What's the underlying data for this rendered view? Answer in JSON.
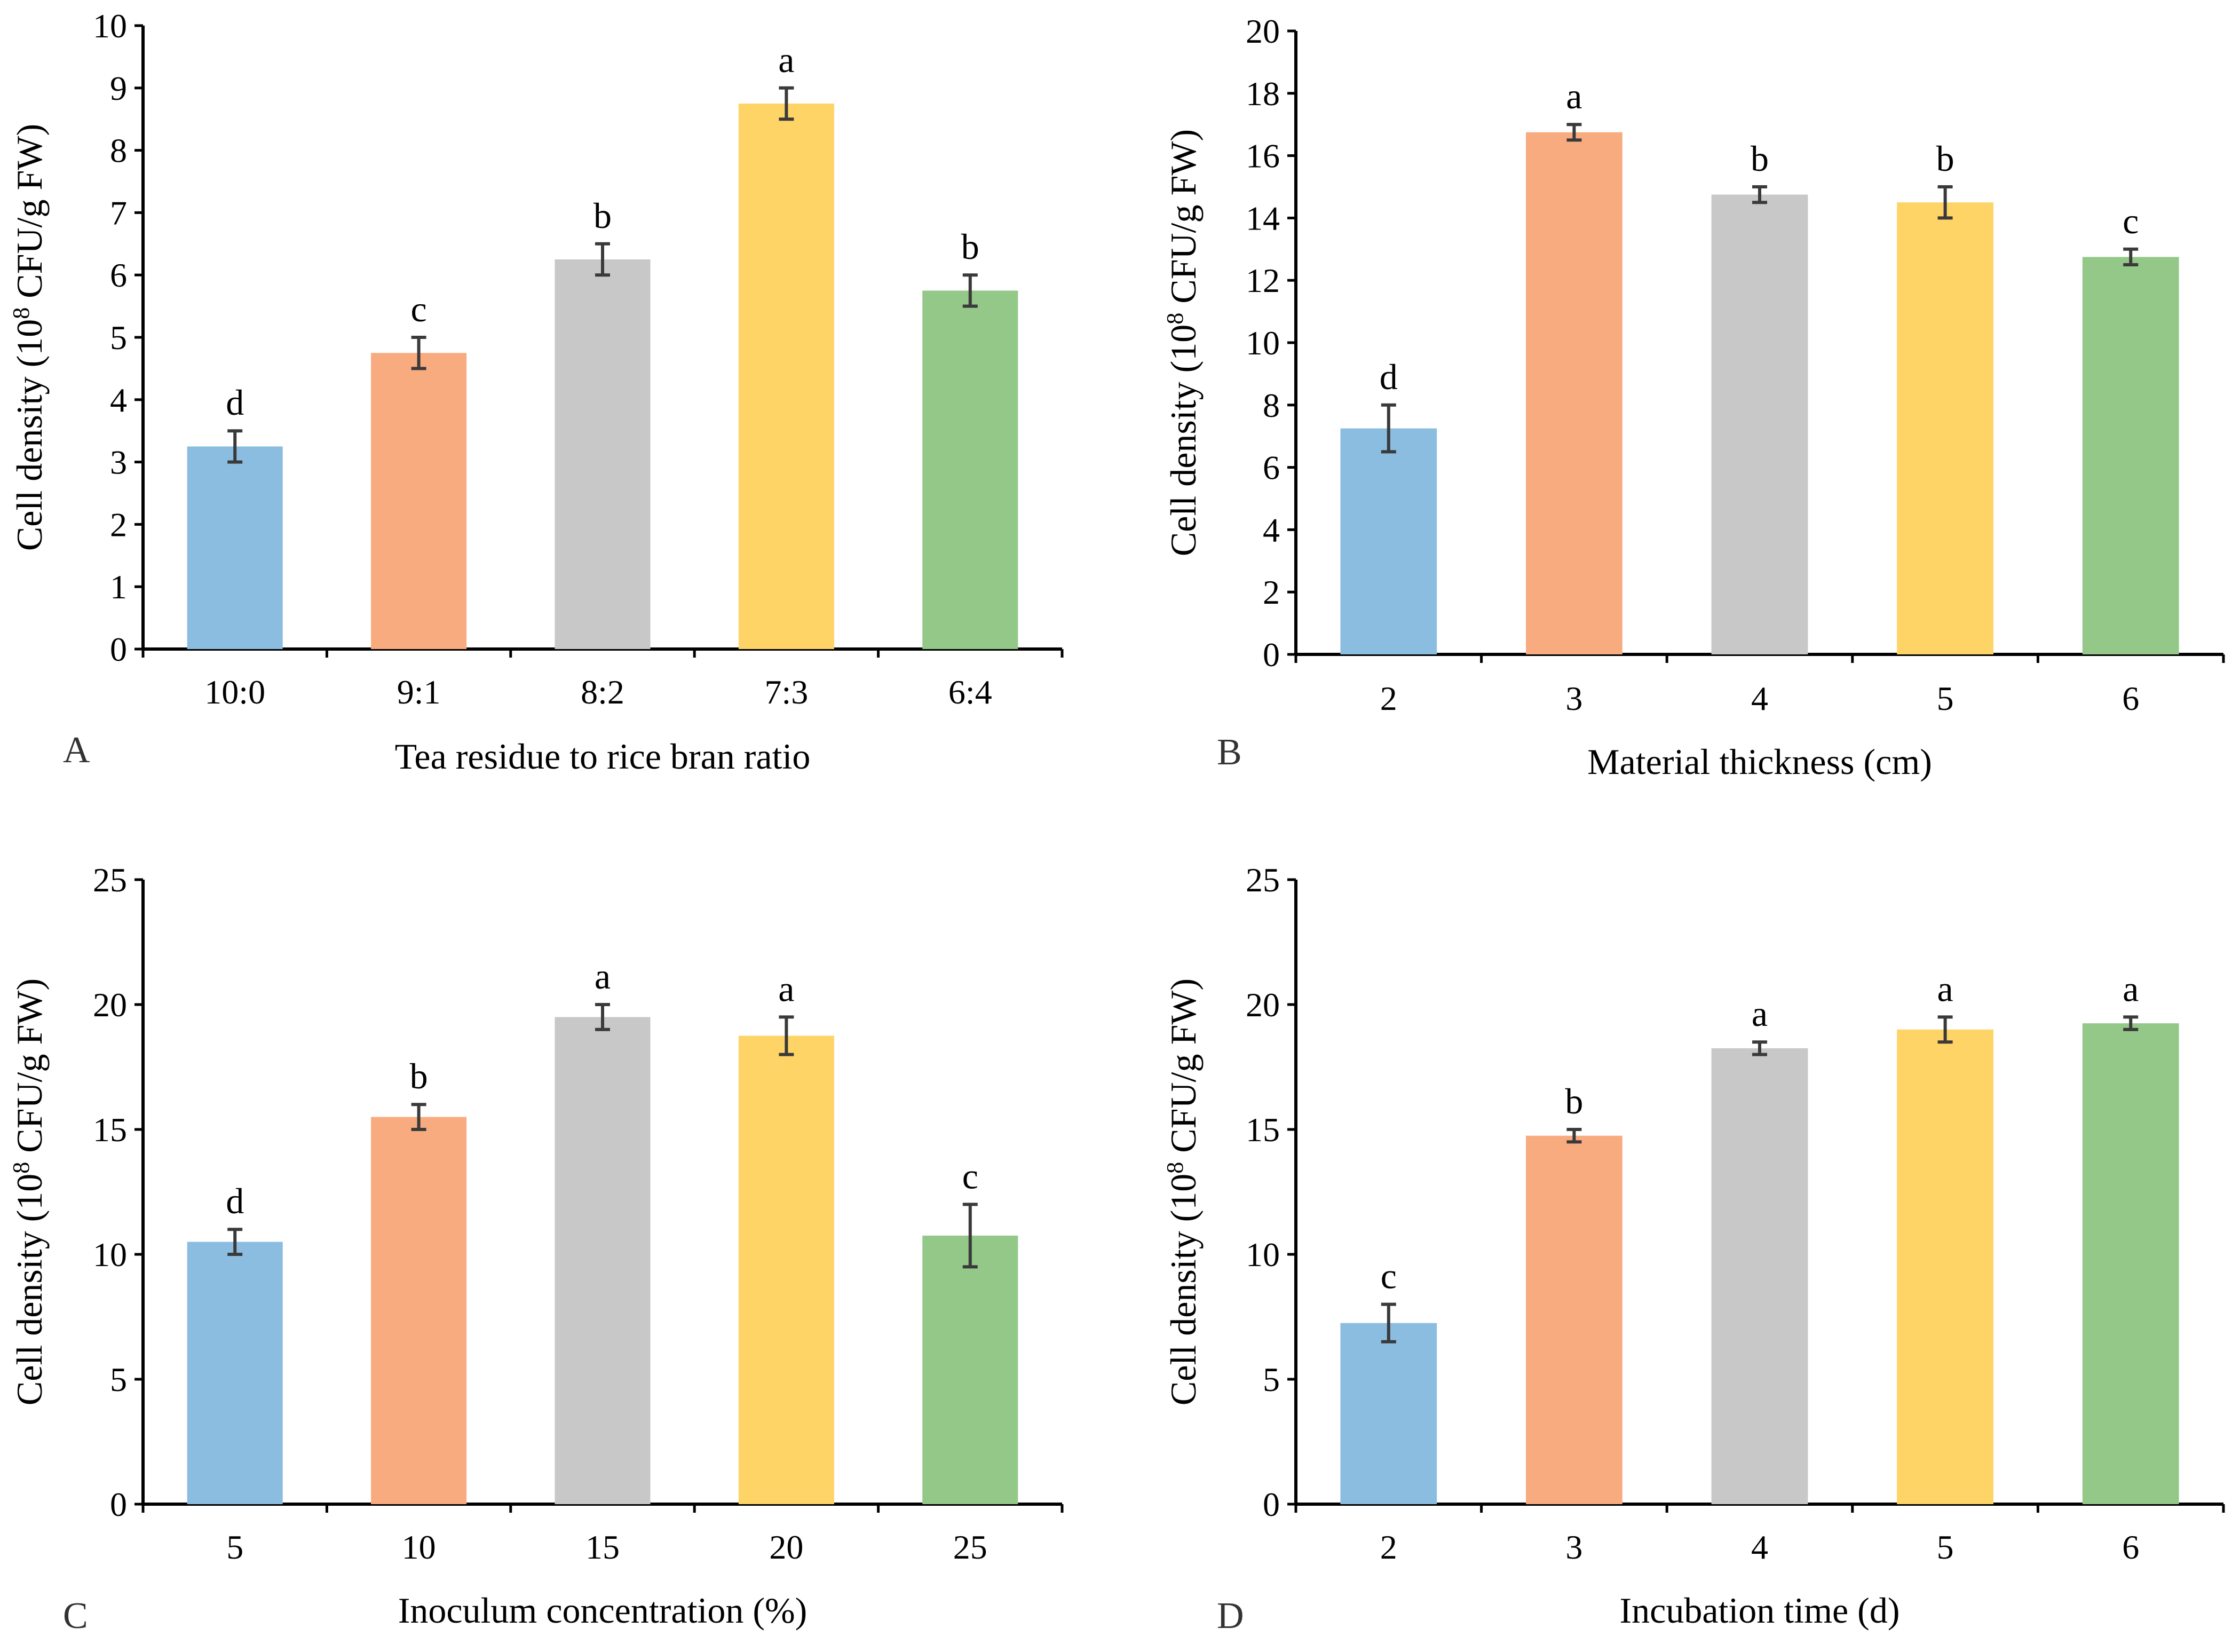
{
  "colors": {
    "bars": [
      "#8bbde0",
      "#f9ab80",
      "#c8c8c8",
      "#ffd466",
      "#94c888"
    ],
    "axis": "#000000",
    "error_bar": "#3a3a3a"
  },
  "ylabel_parts": {
    "pre": "Cell density (10",
    "sup": "8",
    "post": " CFU/g FW)"
  },
  "chart_data": [
    {
      "panel": "A",
      "type": "bar",
      "title": "",
      "xlabel": "Tea residue to rice bran ratio",
      "ylabel": "Cell density (10^8 CFU/g FW)",
      "ylim": [
        0,
        10
      ],
      "ytick_step": 1,
      "grid": false,
      "categories": [
        "10:0",
        "9:1",
        "8:2",
        "7:3",
        "6:4"
      ],
      "values": [
        3.25,
        4.75,
        6.25,
        8.75,
        5.75
      ],
      "errors": [
        0.25,
        0.25,
        0.25,
        0.25,
        0.25
      ],
      "significance": [
        "d",
        "c",
        "b",
        "a",
        "b"
      ]
    },
    {
      "panel": "B",
      "type": "bar",
      "title": "",
      "xlabel": "Material thickness (cm)",
      "ylabel": "Cell density (10^8 CFU/g FW)",
      "ylim": [
        0,
        20
      ],
      "ytick_step": 2,
      "grid": false,
      "categories": [
        "2",
        "3",
        "4",
        "5",
        "6"
      ],
      "values": [
        7.25,
        16.75,
        14.75,
        14.5,
        12.75
      ],
      "errors": [
        0.75,
        0.25,
        0.25,
        0.5,
        0.25
      ],
      "significance": [
        "d",
        "a",
        "b",
        "b",
        "c"
      ]
    },
    {
      "panel": "C",
      "type": "bar",
      "title": "",
      "xlabel": "Inoculum concentration (%)",
      "ylabel": "Cell density (10^8 CFU/g FW)",
      "ylim": [
        0,
        25
      ],
      "ytick_step": 5,
      "grid": false,
      "categories": [
        "5",
        "10",
        "15",
        "20",
        "25"
      ],
      "values": [
        10.5,
        15.5,
        19.5,
        18.75,
        10.75
      ],
      "errors": [
        0.5,
        0.5,
        0.5,
        0.75,
        1.25
      ],
      "significance": [
        "d",
        "b",
        "a",
        "a",
        "c"
      ]
    },
    {
      "panel": "D",
      "type": "bar",
      "title": "",
      "xlabel": "Incubation time (d)",
      "ylabel": "Cell density (10^8 CFU/g FW)",
      "ylim": [
        0,
        25
      ],
      "ytick_step": 5,
      "grid": false,
      "categories": [
        "2",
        "3",
        "4",
        "5",
        "6"
      ],
      "values": [
        7.25,
        14.75,
        18.25,
        19.0,
        19.25
      ],
      "errors": [
        0.75,
        0.25,
        0.25,
        0.5,
        0.25
      ],
      "significance": [
        "c",
        "b",
        "a",
        "a",
        "a"
      ]
    }
  ]
}
